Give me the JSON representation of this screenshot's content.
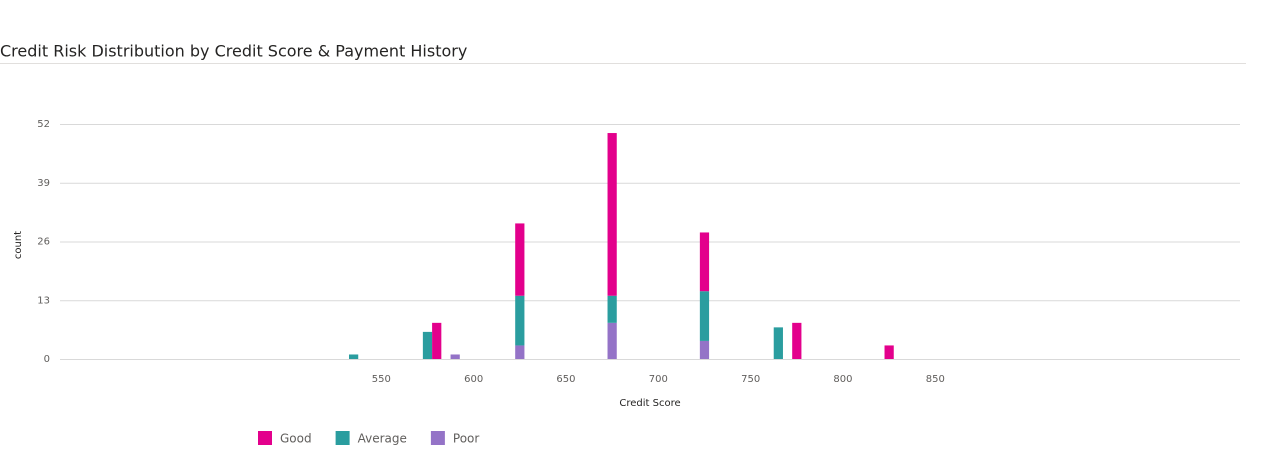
{
  "chart_data": {
    "type": "stacked-histogram",
    "title": "Credit Risk Distribution by Credit Score & Payment History",
    "x_label": "Credit Score",
    "y_label": "count",
    "x": [
      535,
      575,
      580,
      590,
      625,
      675,
      725,
      765,
      775,
      825
    ],
    "series": [
      {
        "name": "Good",
        "color": "#e3008c",
        "values": [
          null,
          null,
          8,
          null,
          16,
          36,
          13,
          null,
          8,
          3
        ]
      },
      {
        "name": "Average",
        "color": "#2a9d9f",
        "values": [
          1,
          6,
          null,
          null,
          11,
          6,
          11,
          7,
          null,
          null
        ]
      },
      {
        "name": "Poor",
        "color": "#9473c7",
        "values": [
          null,
          null,
          null,
          1,
          3,
          8,
          4,
          null,
          null,
          null
        ]
      }
    ],
    "xlim": [
      376,
      1015
    ],
    "xticks": [
      550,
      600,
      650,
      700,
      750,
      800,
      850
    ],
    "ylim": [
      0,
      52
    ],
    "yticks": [
      0,
      13,
      26,
      39,
      52
    ],
    "grid": true,
    "legend": "bottom-left"
  }
}
